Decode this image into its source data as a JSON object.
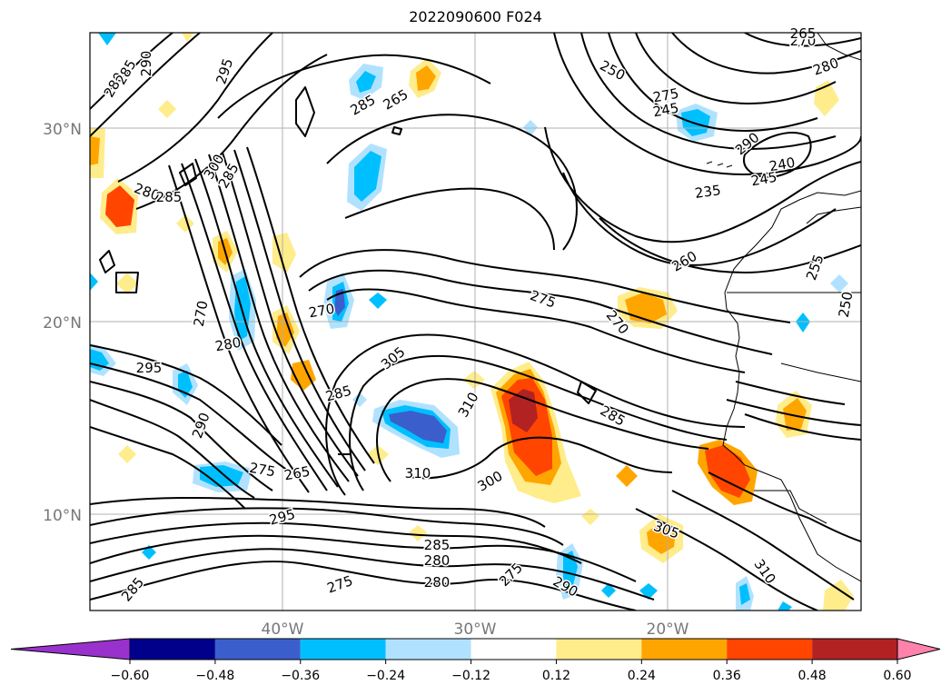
{
  "title": "2022090600 F024",
  "map": {
    "lat_labels": [
      "30°N",
      "20°N",
      "10°N"
    ],
    "lon_labels": [
      "40°W",
      "30°W",
      "20°W"
    ],
    "grid": true,
    "contour_line_color": "#000000",
    "contour_labels": [
      "280",
      "285",
      "290",
      "295",
      "285",
      "265",
      "270",
      "265",
      "250",
      "280",
      "275",
      "245",
      "235",
      "240",
      "245",
      "290",
      "300",
      "285",
      "280",
      "285",
      "260",
      "255",
      "250",
      "275",
      "270",
      "270",
      "280",
      "270",
      "295",
      "305",
      "285",
      "310",
      "285",
      "290",
      "275",
      "265",
      "310",
      "300",
      "295",
      "305",
      "285",
      "280",
      "280",
      "275",
      "275",
      "290",
      "310",
      "285"
    ]
  },
  "colorbar": {
    "tick_labels": [
      "−0.60",
      "−0.48",
      "−0.36",
      "−0.24",
      "−0.12",
      "0.12",
      "0.24",
      "0.36",
      "0.48",
      "0.60"
    ],
    "colors": [
      "#9932cc",
      "#00008b",
      "#3a5fcd",
      "#00bfff",
      "#b0e2ff",
      "#ffffff",
      "#ffec8b",
      "#ffa500",
      "#ff4500",
      "#b22222",
      "#ff82ab"
    ],
    "extend": "both"
  }
}
